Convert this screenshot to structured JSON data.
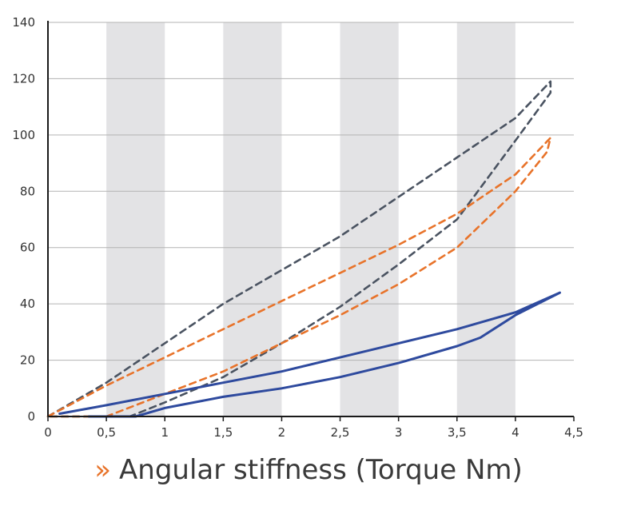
{
  "chart_data": {
    "type": "line",
    "title": "",
    "xlabel": "",
    "ylabel": "",
    "xlim": [
      0,
      4.5
    ],
    "ylim": [
      0,
      140
    ],
    "x_ticks": [
      0,
      0.5,
      1,
      1.5,
      2,
      2.5,
      3,
      3.5,
      4,
      4.5
    ],
    "x_tick_labels": [
      "0",
      "0,5",
      "1",
      "1,5",
      "2",
      "2,5",
      "3",
      "3,5",
      "4",
      "4,5"
    ],
    "y_ticks": [
      0,
      20,
      40,
      60,
      80,
      100,
      120,
      140
    ],
    "y_tick_labels": [
      "0",
      "20",
      "40",
      "60",
      "80",
      "100",
      "120",
      "140"
    ],
    "grid": "horizontal lines with alternating vertical bands",
    "band_color": "#e3e3e5",
    "series": [
      {
        "color": "#4a5361",
        "style": "dashed",
        "points": [
          [
            0,
            0
          ],
          [
            0.5,
            12
          ],
          [
            1,
            26
          ],
          [
            1.5,
            40
          ],
          [
            2,
            52
          ],
          [
            2.5,
            64
          ],
          [
            3,
            78
          ],
          [
            3.5,
            92
          ],
          [
            4,
            106
          ],
          [
            4.3,
            119
          ],
          [
            4.3,
            115
          ],
          [
            4,
            98
          ],
          [
            3.5,
            70
          ],
          [
            3,
            54
          ],
          [
            2.5,
            39
          ],
          [
            2,
            26
          ],
          [
            1.5,
            14
          ],
          [
            1,
            5
          ],
          [
            0.7,
            0
          ],
          [
            0,
            0
          ]
        ]
      },
      {
        "color": "#e8732a",
        "style": "dashed",
        "points": [
          [
            0,
            0
          ],
          [
            0.5,
            11
          ],
          [
            1,
            21
          ],
          [
            1.5,
            31
          ],
          [
            2,
            41
          ],
          [
            2.5,
            51
          ],
          [
            3,
            61
          ],
          [
            3.5,
            72
          ],
          [
            4,
            86
          ],
          [
            4.3,
            99
          ],
          [
            4.27,
            94
          ],
          [
            4,
            80
          ],
          [
            3.5,
            60
          ],
          [
            3,
            47
          ],
          [
            2.5,
            36
          ],
          [
            2,
            26
          ],
          [
            1.5,
            16
          ],
          [
            1,
            8
          ],
          [
            0.5,
            0
          ],
          [
            0,
            0
          ]
        ]
      },
      {
        "color": "#2e4a9e",
        "style": "solid",
        "points": [
          [
            0.1,
            1
          ],
          [
            0.5,
            4
          ],
          [
            1,
            8
          ],
          [
            1.5,
            12
          ],
          [
            2,
            16
          ],
          [
            2.5,
            21
          ],
          [
            3,
            26
          ],
          [
            3.5,
            31
          ],
          [
            4,
            37
          ],
          [
            4.38,
            44
          ],
          [
            4,
            36
          ],
          [
            3.7,
            28
          ],
          [
            3.5,
            25
          ],
          [
            3,
            19
          ],
          [
            2.5,
            14
          ],
          [
            2,
            10
          ],
          [
            1.5,
            7
          ],
          [
            1,
            3
          ],
          [
            0.75,
            0
          ],
          [
            0.35,
            0
          ]
        ]
      }
    ]
  },
  "caption": {
    "mark": "»",
    "text": "Angular stiffness (Torque Nm)",
    "mark_color": "#e8732a"
  }
}
